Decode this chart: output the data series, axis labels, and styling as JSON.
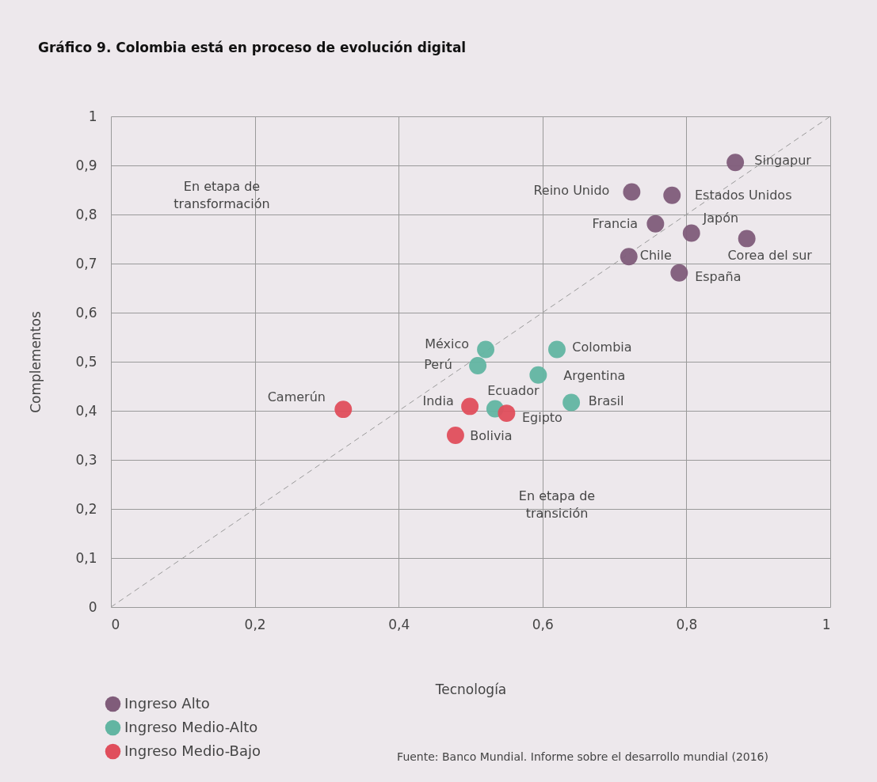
{
  "chart_data": {
    "type": "scatter",
    "title": "Gráfico 9. Colombia está en proceso de evolución digital",
    "xlabel": "Tecnología",
    "ylabel": "Complementos",
    "xlim": [
      0,
      1
    ],
    "ylim": [
      0,
      1
    ],
    "xticks": [
      0,
      {
        "value": 0.2,
        "label": "0,2"
      },
      {
        "value": 0.4,
        "label": "0,4"
      },
      {
        "value": 0.6,
        "label": "0,6"
      },
      {
        "value": 0.8,
        "label": "0,8"
      },
      1
    ],
    "yticks": [
      0,
      {
        "value": 0.1,
        "label": "0,1"
      },
      {
        "value": 0.2,
        "label": "0,2"
      },
      {
        "value": 0.3,
        "label": "0,3"
      },
      {
        "value": 0.4,
        "label": "0,4"
      },
      {
        "value": 0.5,
        "label": "0,5"
      },
      {
        "value": 0.6,
        "label": "0,6"
      },
      {
        "value": 0.7,
        "label": "0,7"
      },
      {
        "value": 0.8,
        "label": "0,8"
      },
      {
        "value": 0.9,
        "label": "0,9"
      },
      1
    ],
    "grid": true,
    "legend": "bottom left",
    "marker": "circle",
    "series": [
      {
        "name": "Ingreso Alto",
        "color": "#805c7a",
        "x": [
          0.868,
          0.724,
          0.78,
          0.757,
          0.807,
          0.884,
          0.72,
          0.79
        ],
        "values": [
          0.906,
          0.846,
          0.839,
          0.781,
          0.762,
          0.751,
          0.714,
          0.681
        ]
      },
      {
        "name": "Ingreso Medio-Alto",
        "color": "#62b5a2",
        "x": [
          0.521,
          0.51,
          0.62,
          0.594,
          0.534,
          0.64
        ],
        "values": [
          0.525,
          0.492,
          0.525,
          0.473,
          0.404,
          0.417
        ]
      },
      {
        "name": "Ingreso Medio-Bajo",
        "color": "#e04e5c",
        "x": [
          0.323,
          0.499,
          0.55,
          0.479
        ],
        "values": [
          0.403,
          0.409,
          0.395,
          0.35
        ]
      },
      {
        "type": "line",
        "color": "#9a9a9a",
        "line_style": "dashed",
        "marker": "none",
        "x": [
          0,
          1
        ],
        "values": [
          0,
          1
        ]
      }
    ],
    "annotations": [
      {
        "text": "Singapur",
        "x": 0.868,
        "y": 0.906
      },
      {
        "text": "Reino Unido",
        "x": 0.724,
        "y": 0.846
      },
      {
        "text": "Estados Unidos",
        "x": 0.78,
        "y": 0.839
      },
      {
        "text": "Francia",
        "x": 0.757,
        "y": 0.781
      },
      {
        "text": "Japón",
        "x": 0.807,
        "y": 0.762
      },
      {
        "text": "Corea del sur",
        "x": 0.884,
        "y": 0.751
      },
      {
        "text": "Chile",
        "x": 0.72,
        "y": 0.714
      },
      {
        "text": "España",
        "x": 0.79,
        "y": 0.681
      },
      {
        "text": "México",
        "x": 0.521,
        "y": 0.525
      },
      {
        "text": "Perú",
        "x": 0.51,
        "y": 0.492
      },
      {
        "text": "Colombia",
        "x": 0.62,
        "y": 0.525
      },
      {
        "text": "Argentina",
        "x": 0.594,
        "y": 0.473
      },
      {
        "text": "Ecuador",
        "x": 0.534,
        "y": 0.404
      },
      {
        "text": "Brasil",
        "x": 0.64,
        "y": 0.417
      },
      {
        "text": "Camerún",
        "x": 0.323,
        "y": 0.403
      },
      {
        "text": "India",
        "x": 0.499,
        "y": 0.409
      },
      {
        "text": "Egipto",
        "x": 0.55,
        "y": 0.395
      },
      {
        "text": "Bolivia",
        "x": 0.479,
        "y": 0.35
      },
      "En etapa de\ntransformación",
      "En etapa de\ntransición",
      "Fuente: Banco Mundial. Informe sobre el desarrollo mundial (2016)"
    ]
  }
}
